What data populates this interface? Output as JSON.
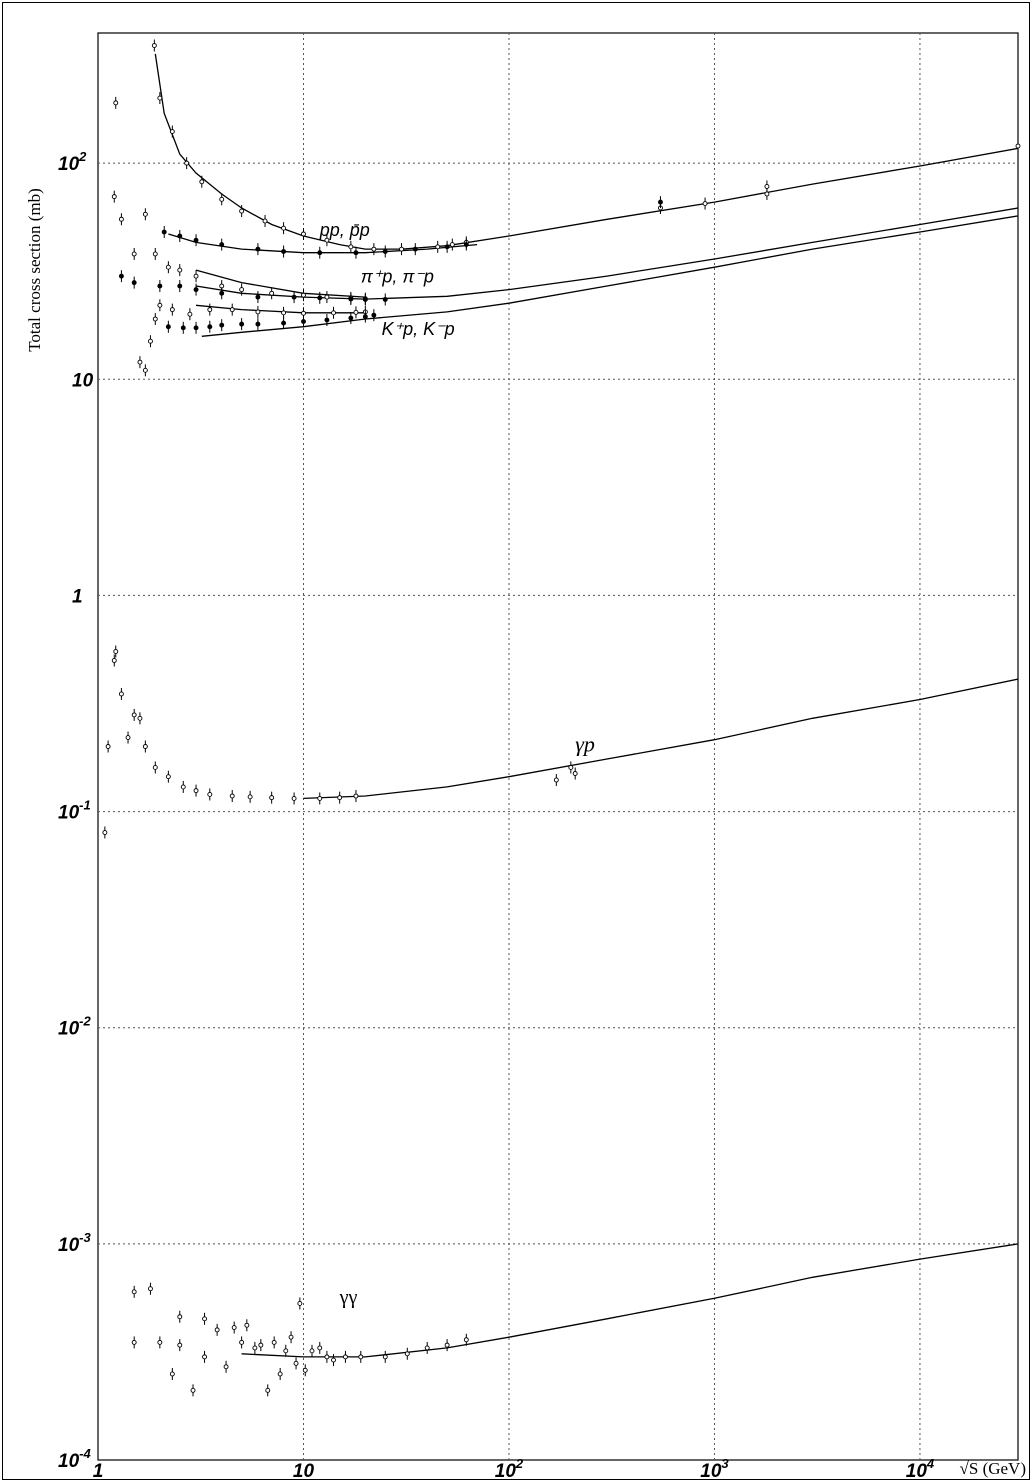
{
  "chart_data": {
    "type": "scatter",
    "xlabel": "√S (GeV)",
    "ylabel": "Total cross section (mb)",
    "x_scale": "log",
    "y_scale": "log",
    "xlim": [
      1,
      30000
    ],
    "ylim": [
      0.0001,
      400
    ],
    "grid": true,
    "x_ticks": [
      {
        "value": 1,
        "base": "1",
        "exp": ""
      },
      {
        "value": 10,
        "base": "10",
        "exp": ""
      },
      {
        "value": 100,
        "base": "10",
        "exp": "2"
      },
      {
        "value": 1000,
        "base": "10",
        "exp": "3"
      },
      {
        "value": 10000,
        "base": "10",
        "exp": "4"
      }
    ],
    "y_ticks": [
      {
        "value": 0.0001,
        "base": "10",
        "exp": "-4"
      },
      {
        "value": 0.001,
        "base": "10",
        "exp": "-3"
      },
      {
        "value": 0.01,
        "base": "10",
        "exp": "-2"
      },
      {
        "value": 0.1,
        "base": "10",
        "exp": "-1"
      },
      {
        "value": 1,
        "base": "1",
        "exp": ""
      },
      {
        "value": 10,
        "base": "10",
        "exp": ""
      },
      {
        "value": 100,
        "base": "10",
        "exp": "2"
      }
    ],
    "annotations": [
      {
        "id": "pp",
        "text": "pp, p̄p",
        "x": 12,
        "y": 46
      },
      {
        "id": "pip",
        "text": "π⁺p, π⁻p",
        "x": 19,
        "y": 28
      },
      {
        "id": "kp",
        "text": "K⁺p, K⁻p",
        "x": 24,
        "y": 16
      },
      {
        "id": "gp",
        "text": "γp",
        "x": 210,
        "y": 0.19
      },
      {
        "id": "gg",
        "text": "γγ",
        "x": 15,
        "y": 0.00053
      }
    ],
    "series": [
      {
        "name": "pp, p̄p",
        "fit": [
          [
            1.9,
            320
          ],
          [
            2.1,
            170
          ],
          [
            2.5,
            110
          ],
          [
            3,
            90
          ],
          [
            4,
            72
          ],
          [
            5,
            62
          ],
          [
            7,
            52
          ],
          [
            10,
            46
          ],
          [
            15,
            42
          ],
          [
            20,
            40
          ],
          [
            30,
            40
          ],
          [
            50,
            41.5
          ],
          [
            100,
            46
          ],
          [
            300,
            55
          ],
          [
            1000,
            66
          ],
          [
            3000,
            80
          ],
          [
            10000,
            97
          ],
          [
            30000,
            117
          ]
        ],
        "fit2": [
          [
            2.2,
            47
          ],
          [
            3,
            43
          ],
          [
            5,
            40
          ],
          [
            10,
            38.5
          ],
          [
            20,
            38.5
          ],
          [
            40,
            40
          ],
          [
            70,
            42
          ]
        ],
        "points": [
          [
            1.88,
            350
          ],
          [
            2.0,
            200
          ],
          [
            2.3,
            140
          ],
          [
            2.7,
            100
          ],
          [
            3.2,
            82
          ],
          [
            4,
            68
          ],
          [
            5,
            60
          ],
          [
            6.5,
            54
          ],
          [
            8,
            50
          ],
          [
            10,
            47
          ],
          [
            13,
            44
          ],
          [
            17,
            41
          ],
          [
            22,
            40
          ],
          [
            30,
            40
          ],
          [
            45,
            41
          ],
          [
            53,
            42
          ],
          [
            62,
            43
          ],
          [
            546,
            62
          ],
          [
            900,
            65
          ],
          [
            1800,
            72
          ],
          [
            1800,
            78
          ],
          [
            30000,
            120
          ]
        ],
        "points2": [
          [
            2.1,
            48
          ],
          [
            2.5,
            46
          ],
          [
            3,
            44
          ],
          [
            4,
            42
          ],
          [
            6,
            40
          ],
          [
            8,
            39
          ],
          [
            12,
            38.5
          ],
          [
            18,
            38.5
          ],
          [
            25,
            39
          ],
          [
            35,
            40
          ],
          [
            50,
            41
          ],
          [
            62,
            42
          ],
          [
            546,
            66
          ]
        ]
      },
      {
        "name": "π⁺p, π⁻p",
        "fit": [
          [
            3,
            27
          ],
          [
            5,
            25
          ],
          [
            10,
            24
          ],
          [
            20,
            23.5
          ],
          [
            50,
            24.2
          ],
          [
            100,
            26
          ],
          [
            300,
            30
          ],
          [
            1000,
            36
          ],
          [
            3000,
            43
          ],
          [
            10000,
            52
          ],
          [
            30000,
            62
          ]
        ],
        "fit2": [
          [
            3,
            32
          ],
          [
            5,
            28
          ],
          [
            10,
            25
          ],
          [
            20,
            24
          ]
        ],
        "points": [
          [
            1.2,
            70
          ],
          [
            1.22,
            190
          ],
          [
            1.3,
            55
          ],
          [
            1.5,
            38
          ],
          [
            1.7,
            58
          ],
          [
            1.9,
            38
          ],
          [
            2.2,
            33
          ],
          [
            2.5,
            32
          ],
          [
            3,
            30
          ],
          [
            4,
            27
          ],
          [
            5,
            26
          ],
          [
            7,
            25
          ],
          [
            10,
            24.5
          ],
          [
            13,
            24
          ],
          [
            17,
            23.8
          ],
          [
            20,
            23.6
          ]
        ],
        "points2": [
          [
            1.3,
            30
          ],
          [
            1.5,
            28
          ],
          [
            2,
            27
          ],
          [
            2.5,
            27
          ],
          [
            3,
            26
          ],
          [
            4,
            25
          ],
          [
            6,
            24
          ],
          [
            9,
            24
          ],
          [
            12,
            23.8
          ],
          [
            17,
            23.5
          ],
          [
            20,
            23.4
          ],
          [
            25,
            23.4
          ]
        ]
      },
      {
        "name": "K⁺p, K⁻p",
        "fit": [
          [
            3.2,
            15.8
          ],
          [
            5,
            16.5
          ],
          [
            10,
            17.5
          ],
          [
            20,
            19
          ],
          [
            50,
            20.5
          ],
          [
            100,
            22.5
          ],
          [
            300,
            27
          ],
          [
            1000,
            33
          ],
          [
            3000,
            40
          ],
          [
            10000,
            48
          ],
          [
            30000,
            57
          ]
        ],
        "fit2": [
          [
            3,
            22
          ],
          [
            5,
            21
          ],
          [
            10,
            20.3
          ],
          [
            20,
            20.3
          ]
        ],
        "points": [
          [
            1.6,
            12
          ],
          [
            1.7,
            11
          ],
          [
            1.8,
            15
          ],
          [
            1.9,
            19
          ],
          [
            2,
            22
          ],
          [
            2.3,
            21
          ],
          [
            2.8,
            20
          ],
          [
            3.5,
            21
          ],
          [
            4.5,
            21
          ],
          [
            6,
            20.5
          ],
          [
            8,
            20.3
          ],
          [
            10,
            20.2
          ],
          [
            14,
            20.3
          ],
          [
            18,
            20.4
          ],
          [
            20,
            20.5
          ]
        ],
        "points2": [
          [
            2.2,
            17.5
          ],
          [
            2.6,
            17.3
          ],
          [
            3,
            17.3
          ],
          [
            3.5,
            17.5
          ],
          [
            4,
            17.8
          ],
          [
            5,
            18
          ],
          [
            6,
            18
          ],
          [
            8,
            18.2
          ],
          [
            10,
            18.5
          ],
          [
            13,
            18.8
          ],
          [
            17,
            19.2
          ],
          [
            20,
            19.5
          ],
          [
            22,
            19.8
          ]
        ]
      },
      {
        "name": "γp",
        "fit": [
          [
            10,
            0.115
          ],
          [
            20,
            0.118
          ],
          [
            50,
            0.13
          ],
          [
            100,
            0.145
          ],
          [
            300,
            0.175
          ],
          [
            1000,
            0.215
          ],
          [
            3000,
            0.27
          ],
          [
            10000,
            0.33
          ],
          [
            30000,
            0.41
          ]
        ],
        "points": [
          [
            1.08,
            0.08
          ],
          [
            1.12,
            0.2
          ],
          [
            1.2,
            0.5
          ],
          [
            1.22,
            0.55
          ],
          [
            1.3,
            0.35
          ],
          [
            1.4,
            0.22
          ],
          [
            1.5,
            0.28
          ],
          [
            1.6,
            0.27
          ],
          [
            1.7,
            0.2
          ],
          [
            1.9,
            0.16
          ],
          [
            2.2,
            0.145
          ],
          [
            2.6,
            0.13
          ],
          [
            3,
            0.125
          ],
          [
            3.5,
            0.12
          ],
          [
            4.5,
            0.118
          ],
          [
            5.5,
            0.117
          ],
          [
            7,
            0.116
          ],
          [
            9,
            0.115
          ],
          [
            12,
            0.115
          ],
          [
            15,
            0.116
          ],
          [
            18,
            0.118
          ],
          [
            170,
            0.14
          ],
          [
            200,
            0.16
          ],
          [
            210,
            0.15
          ]
        ]
      },
      {
        "name": "γγ",
        "fit": [
          [
            5,
            0.00031
          ],
          [
            10,
            0.0003
          ],
          [
            20,
            0.0003
          ],
          [
            50,
            0.00033
          ],
          [
            100,
            0.00037
          ],
          [
            300,
            0.00045
          ],
          [
            1000,
            0.00056
          ],
          [
            3000,
            0.0007
          ],
          [
            10000,
            0.00085
          ],
          [
            30000,
            0.001
          ]
        ],
        "points": [
          [
            1.5,
            0.0006
          ],
          [
            1.5,
            0.00035
          ],
          [
            1.8,
            0.00062
          ],
          [
            2,
            0.00035
          ],
          [
            2.3,
            0.00025
          ],
          [
            2.5,
            0.00046
          ],
          [
            2.5,
            0.00034
          ],
          [
            2.9,
            0.00021
          ],
          [
            3.3,
            0.00045
          ],
          [
            3.3,
            0.0003
          ],
          [
            3.8,
            0.0004
          ],
          [
            4.2,
            0.00027
          ],
          [
            4.6,
            0.00041
          ],
          [
            5,
            0.00035
          ],
          [
            5.3,
            0.00042
          ],
          [
            5.8,
            0.00033
          ],
          [
            6.2,
            0.00034
          ],
          [
            6.7,
            0.00021
          ],
          [
            7.2,
            0.00035
          ],
          [
            7.7,
            0.00025
          ],
          [
            8.2,
            0.00032
          ],
          [
            8.7,
            0.00037
          ],
          [
            9.2,
            0.00028
          ],
          [
            9.6,
            0.00053
          ],
          [
            10.2,
            0.00026
          ],
          [
            11,
            0.00032
          ],
          [
            12,
            0.00033
          ],
          [
            13,
            0.0003
          ],
          [
            14,
            0.00029
          ],
          [
            16,
            0.0003
          ],
          [
            19,
            0.0003
          ],
          [
            25,
            0.0003
          ],
          [
            32,
            0.00031
          ],
          [
            40,
            0.00033
          ],
          [
            50,
            0.00034
          ],
          [
            62,
            0.00036
          ]
        ]
      }
    ]
  }
}
